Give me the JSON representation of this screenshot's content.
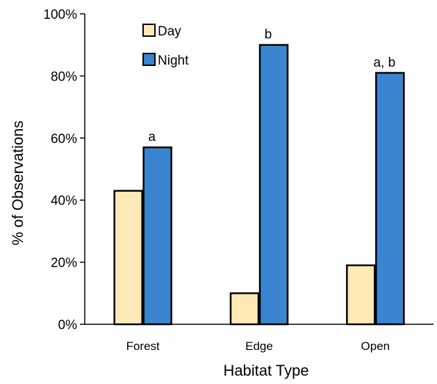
{
  "chart_data": {
    "type": "bar",
    "title": "",
    "xlabel": "Habitat Type",
    "ylabel": "% of Observations",
    "categories": [
      "Forest",
      "Edge",
      "Open"
    ],
    "series": [
      {
        "name": "Day",
        "values": [
          43,
          10,
          19
        ],
        "color": "#fde9b6"
      },
      {
        "name": "Night",
        "values": [
          57,
          90,
          81
        ],
        "color": "#3a84d0"
      }
    ],
    "ylim": [
      0,
      100
    ],
    "yticks": [
      "0%",
      "20%",
      "40%",
      "60%",
      "80%",
      "100%"
    ],
    "significance_labels": [
      "a",
      "b",
      "a, b"
    ],
    "legend_position": "top-left",
    "grid": false
  }
}
